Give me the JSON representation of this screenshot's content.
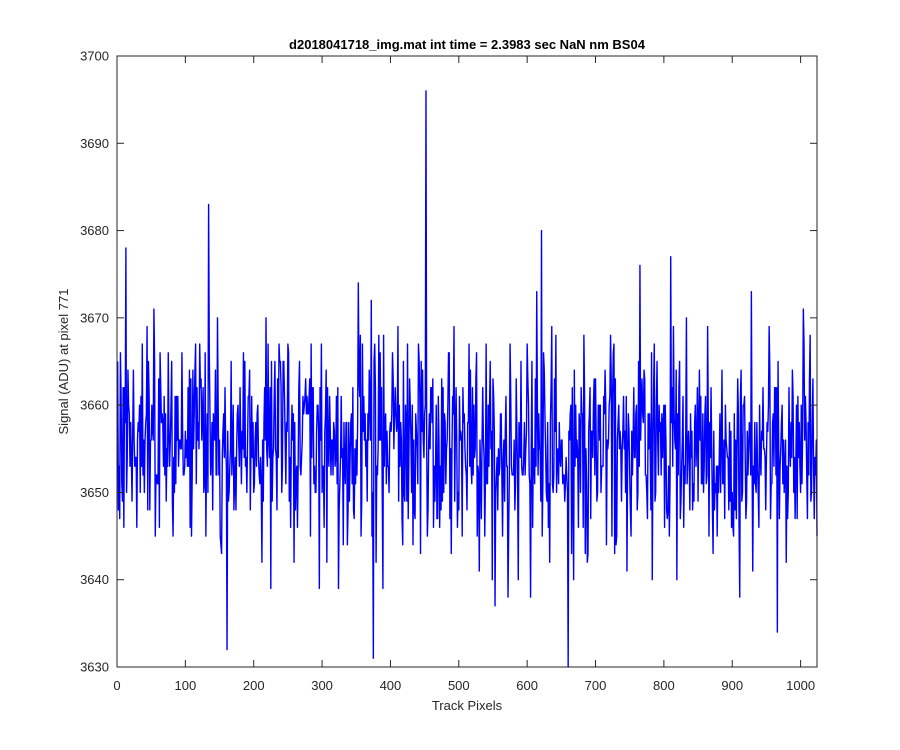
{
  "chart_data": {
    "type": "line",
    "title": "d2018041718_img.mat int time = 2.3983 sec  NaN nm BS04",
    "xlabel": "Track Pixels",
    "ylabel": "Signal (ADU) at pixel 771",
    "xlim": [
      0,
      1024
    ],
    "ylim": [
      3630,
      3700
    ],
    "x_ticks": [
      "0",
      "100",
      "200",
      "300",
      "400",
      "500",
      "600",
      "700",
      "800",
      "900",
      "1000"
    ],
    "y_ticks": [
      "3630",
      "3640",
      "3650",
      "3660",
      "3670",
      "3680",
      "3690",
      "3700"
    ],
    "grid": false,
    "series_color": "#0000ff",
    "series": [
      {
        "x_start": 1,
        "x_step": 1,
        "mean": 3655.4,
        "std": 6.5,
        "count": 1024,
        "notable_points": [
          {
            "x": 13,
            "y": 3678
          },
          {
            "x": 134,
            "y": 3683
          },
          {
            "x": 161,
            "y": 3632
          },
          {
            "x": 375,
            "y": 3631
          },
          {
            "x": 452,
            "y": 3696
          },
          {
            "x": 621,
            "y": 3680
          },
          {
            "x": 660,
            "y": 3630
          },
          {
            "x": 765,
            "y": 3676
          },
          {
            "x": 810,
            "y": 3677
          },
          {
            "x": 966,
            "y": 3634
          }
        ]
      }
    ]
  }
}
